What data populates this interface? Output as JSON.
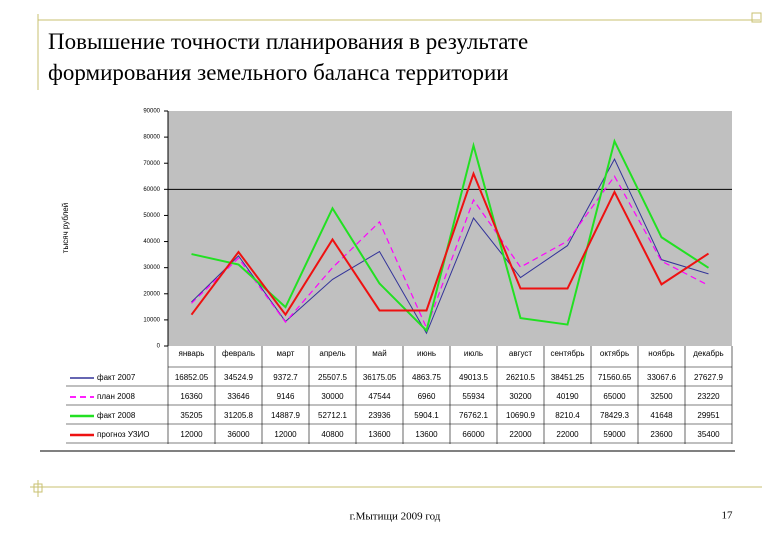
{
  "title": "Повышение точности планирования в результате формирования земельного баланса территории",
  "footer": "г.Мытищи 2009 год",
  "page_number": "17",
  "chart_data": {
    "type": "line",
    "y_label": "тысяч рублей",
    "categories": [
      "январь",
      "февраль",
      "март",
      "апрель",
      "май",
      "июнь",
      "июль",
      "август",
      "сентябрь",
      "октябрь",
      "ноябрь",
      "декабрь"
    ],
    "series": [
      {
        "name": "факт 2007",
        "color": "#333399",
        "dash": false,
        "width": 1,
        "values": [
          16852.05,
          34524.9,
          9372.7,
          25507.5,
          36175.05,
          4863.75,
          49013.5,
          26210.5,
          38451.25,
          71560.65,
          33067.6,
          27627.9
        ]
      },
      {
        "name": "план 2008",
        "color": "#ff00ff",
        "dash": true,
        "width": 1.2,
        "values": [
          16360,
          33646,
          9146,
          30000,
          47544,
          6960,
          55934,
          30200,
          40190,
          65000,
          32500,
          23220
        ]
      },
      {
        "name": "факт 2008",
        "color": "#22e022",
        "dash": false,
        "width": 2,
        "values": [
          35205,
          31205.8,
          14887.9,
          52712.1,
          23936,
          5904.1,
          76762.1,
          10690.9,
          8210.4,
          78429.3,
          41648,
          29951
        ]
      },
      {
        "name": "прогноз УЗИО",
        "color": "#ee1111",
        "dash": false,
        "width": 2,
        "values": [
          12000,
          36000,
          12000,
          40800,
          13600,
          13600,
          66000,
          22000,
          22000,
          59000,
          23600,
          35400
        ]
      }
    ],
    "ylim": [
      0,
      90000
    ],
    "yticks": [
      0,
      10000,
      20000,
      30000,
      40000,
      50000,
      60000,
      70000,
      80000,
      90000
    ],
    "hline": 60000
  }
}
